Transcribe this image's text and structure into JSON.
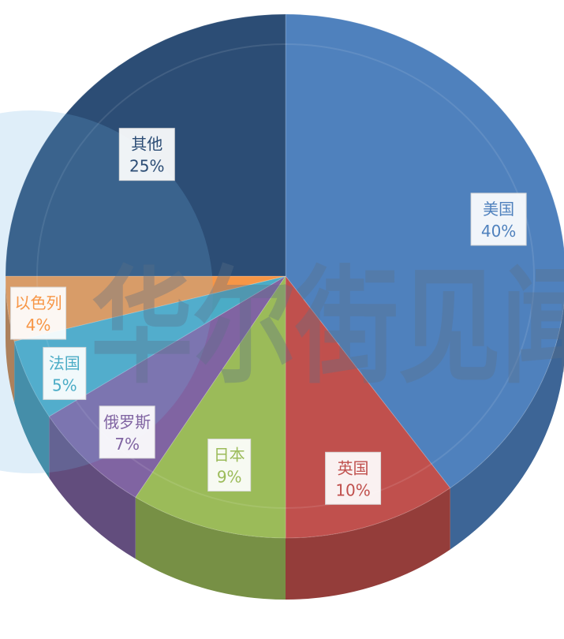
{
  "chart_data": {
    "type": "pie",
    "style": "3d-extruded",
    "watermark": "华尔街见闻",
    "slices": [
      {
        "label": "美国",
        "pct_label": "40%",
        "value": 40,
        "color": "#4f81bd",
        "side_color": "#3d6596",
        "text_color": "#4f81bd"
      },
      {
        "label": "英国",
        "pct_label": "10%",
        "value": 10,
        "color": "#c0504d",
        "side_color": "#943d3a",
        "text_color": "#c0504d"
      },
      {
        "label": "日本",
        "pct_label": "9%",
        "value": 9,
        "color": "#9bbb59",
        "side_color": "#779045",
        "text_color": "#9bbb59"
      },
      {
        "label": "俄罗斯",
        "pct_label": "7%",
        "value": 7,
        "color": "#8064a2",
        "side_color": "#624d7d",
        "text_color": "#8064a2"
      },
      {
        "label": "法国",
        "pct_label": "5%",
        "value": 5,
        "color": "#4bacc6",
        "side_color": "#3a8599",
        "text_color": "#4bacc6"
      },
      {
        "label": "以色列",
        "pct_label": "4%",
        "value": 4,
        "color": "#f79646",
        "side_color": "#bf7436",
        "text_color": "#f79646"
      },
      {
        "label": "其他",
        "pct_label": "25%",
        "value": 25,
        "color": "#2c4d75",
        "side_color": "#223b5a",
        "text_color": "#2c4d75"
      }
    ]
  }
}
